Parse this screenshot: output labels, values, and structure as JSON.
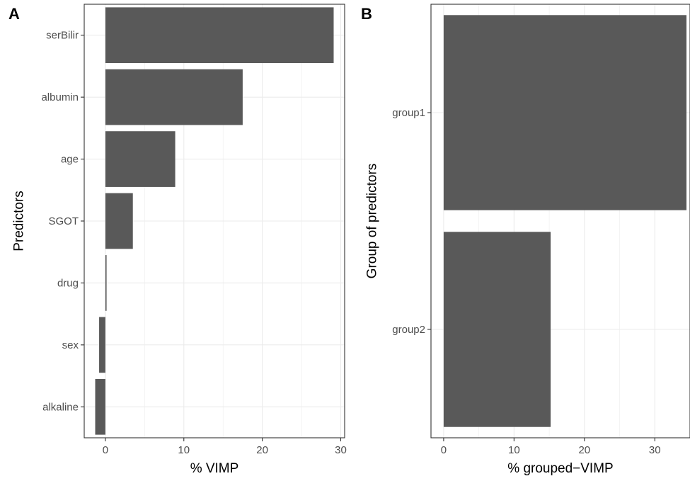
{
  "chart_data": [
    {
      "type": "bar",
      "orientation": "horizontal",
      "tag": "A",
      "xlabel": "% VIMP",
      "ylabel": "Predictors",
      "xlim": [
        -2.7,
        30.5
      ],
      "xticks": [
        0,
        10,
        20,
        30
      ],
      "categories": [
        "serBilir",
        "albumin",
        "age",
        "SGOT",
        "drug",
        "sex",
        "alkaline"
      ],
      "values": [
        29.1,
        17.5,
        8.9,
        3.5,
        0.15,
        -0.8,
        -1.3
      ],
      "grid": true,
      "bar_color": "#595959"
    },
    {
      "type": "bar",
      "orientation": "horizontal",
      "tag": "B",
      "xlabel": "% grouped−VIMP",
      "ylabel": "Group of predictors",
      "xlim": [
        -1.8,
        35
      ],
      "xticks": [
        0,
        10,
        20,
        30
      ],
      "categories": [
        "group1",
        "group2"
      ],
      "values": [
        34.5,
        15.2
      ],
      "grid": true,
      "bar_color": "#595959"
    }
  ]
}
